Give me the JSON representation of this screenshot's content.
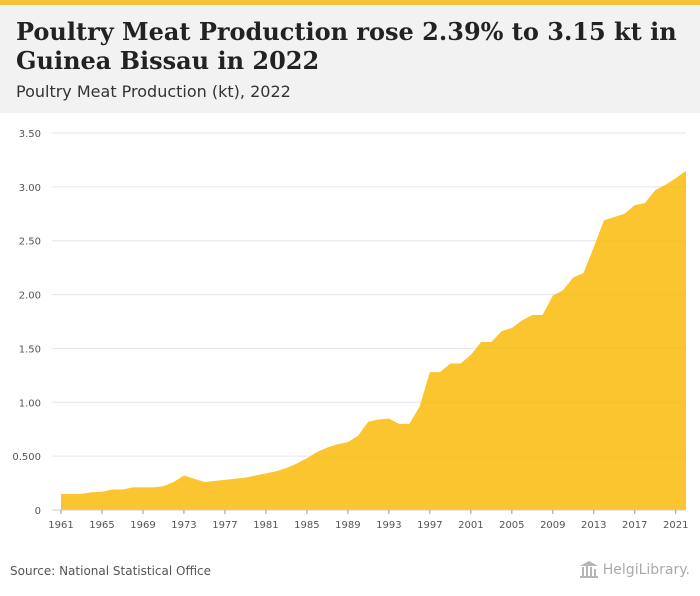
{
  "header": {
    "title": "Poultry Meat Production rose 2.39% to 3.15 kt in Guinea Bissau in 2022",
    "subtitle": "Poultry Meat Production (kt), 2022"
  },
  "footer": {
    "source": "Source: National Statistical Office",
    "brand": "HelgiLibrary."
  },
  "colors": {
    "area": "#f9b800",
    "grid": "#e6e6e6",
    "header_bg": "#f2f2f2",
    "accent_rule": "#f5c23a"
  },
  "chart_data": {
    "type": "area",
    "title": "",
    "xlabel": "",
    "ylabel": "",
    "ylim": [
      0,
      3.5
    ],
    "yticks": [
      "0",
      "0.500",
      "1.00",
      "1.50",
      "2.00",
      "2.50",
      "3.00",
      "3.50"
    ],
    "ytick_values": [
      0,
      0.5,
      1.0,
      1.5,
      2.0,
      2.5,
      3.0,
      3.5
    ],
    "xticks": [
      "1961",
      "1965",
      "1969",
      "1973",
      "1977",
      "1981",
      "1985",
      "1989",
      "1993",
      "1997",
      "2001",
      "2005",
      "2009",
      "2013",
      "2017",
      "2021"
    ],
    "grid": true,
    "x": [
      1961,
      1962,
      1963,
      1964,
      1965,
      1966,
      1967,
      1968,
      1969,
      1970,
      1971,
      1972,
      1973,
      1974,
      1975,
      1976,
      1977,
      1978,
      1979,
      1980,
      1981,
      1982,
      1983,
      1984,
      1985,
      1986,
      1987,
      1988,
      1989,
      1990,
      1991,
      1992,
      1993,
      1994,
      1995,
      1996,
      1997,
      1998,
      1999,
      2000,
      2001,
      2002,
      2003,
      2004,
      2005,
      2006,
      2007,
      2008,
      2009,
      2010,
      2011,
      2012,
      2013,
      2014,
      2015,
      2016,
      2017,
      2018,
      2019,
      2020,
      2021,
      2022
    ],
    "series": [
      {
        "values": [
          0.15,
          0.15,
          0.15,
          0.165,
          0.17,
          0.19,
          0.19,
          0.21,
          0.21,
          0.21,
          0.22,
          0.26,
          0.32,
          0.29,
          0.26,
          0.27,
          0.28,
          0.29,
          0.3,
          0.32,
          0.34,
          0.36,
          0.39,
          0.43,
          0.48,
          0.54,
          0.58,
          0.61,
          0.63,
          0.69,
          0.82,
          0.84,
          0.85,
          0.8,
          0.8,
          0.96,
          1.28,
          1.28,
          1.36,
          1.36,
          1.44,
          1.56,
          1.56,
          1.66,
          1.69,
          1.76,
          1.81,
          1.81,
          1.99,
          2.04,
          2.16,
          2.2,
          2.44,
          2.69,
          2.72,
          2.75,
          2.83,
          2.85,
          2.97,
          3.02,
          3.08,
          3.15
        ]
      }
    ]
  }
}
